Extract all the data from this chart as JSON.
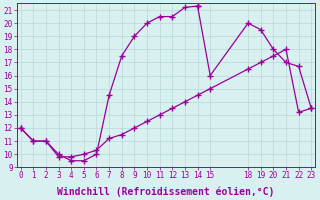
{
  "xlabel": "Windchill (Refroidissement éolien,°C)",
  "line_color": "#9b009b",
  "background_color": "#d8f0f0",
  "grid_color": "#b8d8d8",
  "series": [
    {
      "x": [
        0,
        1,
        2,
        3,
        4,
        5,
        6,
        7,
        8,
        9,
        10,
        11,
        12,
        13,
        14
      ],
      "y": [
        12,
        11,
        11,
        10,
        9.5,
        9.5,
        10,
        14.5,
        17.5,
        19,
        20,
        20.5,
        20.5,
        21.2,
        21.3
      ]
    },
    {
      "x": [
        14,
        15,
        18,
        19,
        20,
        21,
        22,
        23
      ],
      "y": [
        21.3,
        16,
        20,
        19.5,
        18,
        17,
        16.7,
        13.5
      ]
    },
    {
      "x": [
        0,
        1,
        2,
        3,
        4,
        5,
        6,
        7,
        8,
        9,
        10,
        11,
        12,
        13,
        14,
        15,
        18,
        19,
        20,
        21,
        22,
        23
      ],
      "y": [
        12,
        11,
        11,
        9.8,
        9.8,
        10,
        10.3,
        11.2,
        11.5,
        12,
        12.5,
        13,
        13.5,
        14,
        14.5,
        15,
        16.5,
        17,
        17.5,
        18,
        13.2,
        13.5
      ]
    }
  ],
  "xlim": [
    -0.3,
    23.3
  ],
  "ylim": [
    9,
    21.5
  ],
  "xticks": [
    0,
    1,
    2,
    3,
    4,
    5,
    6,
    7,
    8,
    9,
    10,
    11,
    12,
    13,
    14,
    15,
    18,
    19,
    20,
    21,
    22,
    23
  ],
  "yticks": [
    9,
    10,
    11,
    12,
    13,
    14,
    15,
    16,
    17,
    18,
    19,
    20,
    21
  ],
  "tick_fontsize": 5.5,
  "xlabel_fontsize": 7.0,
  "marker": "+",
  "markersize": 4,
  "linewidth": 0.9
}
